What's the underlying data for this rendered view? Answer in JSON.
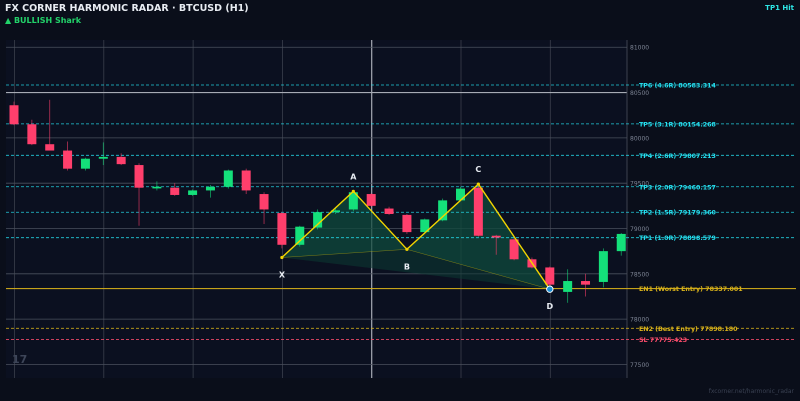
{
  "header": {
    "title": "FX CORNER HARMONIC RADAR  ·  BTCUSD (H1)",
    "pattern": "▲ BULLISH  Shark",
    "status": "TP1 Hit",
    "watermark": "fxcorner.net/harmonic_radar"
  },
  "logo": {
    "text": "17"
  },
  "colors": {
    "background": "#0a0e1a",
    "bull": "#14e07a",
    "bear": "#ff3f6c",
    "pattern_line": "#f2d400",
    "pattern_fill": "#0f4a3c",
    "tp": "#25e0f0",
    "entry": "#d9b21a",
    "sl": "#ff4d6d",
    "grid": "#3a3f4c"
  },
  "chart_data": {
    "type": "candlestick",
    "ylim": [
      77350,
      81080
    ],
    "y_ticks": [
      "81000",
      "80500",
      "80000",
      "79500",
      "79000",
      "78500",
      "78000",
      "77500"
    ],
    "candles": [
      {
        "o": 80360,
        "h": 80400,
        "l": 80140,
        "c": 80150
      },
      {
        "o": 80150,
        "h": 80200,
        "l": 79920,
        "c": 79930
      },
      {
        "o": 79930,
        "h": 80420,
        "l": 79880,
        "c": 79860
      },
      {
        "o": 79860,
        "h": 79960,
        "l": 79640,
        "c": 79660
      },
      {
        "o": 79660,
        "h": 79780,
        "l": 79640,
        "c": 79770
      },
      {
        "o": 79770,
        "h": 79950,
        "l": 79700,
        "c": 79790
      },
      {
        "o": 79790,
        "h": 79830,
        "l": 79700,
        "c": 79710
      },
      {
        "o": 79700,
        "h": 79720,
        "l": 79030,
        "c": 79450
      },
      {
        "o": 79450,
        "h": 79520,
        "l": 79420,
        "c": 79460
      },
      {
        "o": 79450,
        "h": 79500,
        "l": 79360,
        "c": 79370
      },
      {
        "o": 79370,
        "h": 79430,
        "l": 79360,
        "c": 79420
      },
      {
        "o": 79420,
        "h": 79480,
        "l": 79340,
        "c": 79460
      },
      {
        "o": 79460,
        "h": 79650,
        "l": 79440,
        "c": 79640
      },
      {
        "o": 79640,
        "h": 79660,
        "l": 79380,
        "c": 79420
      },
      {
        "o": 79380,
        "h": 79400,
        "l": 79050,
        "c": 79210
      },
      {
        "o": 79170,
        "h": 79180,
        "l": 78780,
        "c": 78820
      },
      {
        "o": 78820,
        "h": 79030,
        "l": 78800,
        "c": 79020
      },
      {
        "o": 79010,
        "h": 79210,
        "l": 78990,
        "c": 79180
      },
      {
        "o": 79180,
        "h": 79220,
        "l": 79160,
        "c": 79200
      },
      {
        "o": 79210,
        "h": 79420,
        "l": 79190,
        "c": 79400
      },
      {
        "o": 79380,
        "h": 79390,
        "l": 79240,
        "c": 79250
      },
      {
        "o": 79220,
        "h": 79240,
        "l": 79150,
        "c": 79160
      },
      {
        "o": 79150,
        "h": 79160,
        "l": 78940,
        "c": 78960
      },
      {
        "o": 78960,
        "h": 79110,
        "l": 78950,
        "c": 79100
      },
      {
        "o": 79090,
        "h": 79330,
        "l": 79080,
        "c": 79310
      },
      {
        "o": 79310,
        "h": 79460,
        "l": 79300,
        "c": 79440
      },
      {
        "o": 79450,
        "h": 79480,
        "l": 78910,
        "c": 78920
      },
      {
        "o": 78920,
        "h": 78930,
        "l": 78710,
        "c": 78900
      },
      {
        "o": 78880,
        "h": 78890,
        "l": 78650,
        "c": 78660
      },
      {
        "o": 78660,
        "h": 78680,
        "l": 78560,
        "c": 78570
      },
      {
        "o": 78570,
        "h": 78580,
        "l": 78330,
        "c": 78380
      },
      {
        "o": 78300,
        "h": 78550,
        "l": 78180,
        "c": 78420
      },
      {
        "o": 78420,
        "h": 78500,
        "l": 78250,
        "c": 78380
      },
      {
        "o": 78410,
        "h": 78780,
        "l": 78350,
        "c": 78750
      },
      {
        "o": 78750,
        "h": 78950,
        "l": 78700,
        "c": 78940
      }
    ],
    "pattern": {
      "points": [
        {
          "label": "X",
          "i": 15,
          "price": 78680
        },
        {
          "label": "A",
          "i": 19,
          "price": 79410
        },
        {
          "label": "B",
          "i": 22,
          "price": 78770
        },
        {
          "label": "C",
          "i": 26,
          "price": 79490
        },
        {
          "label": "D",
          "i": 30,
          "price": 78330
        }
      ]
    },
    "levels": [
      {
        "type": "tp",
        "label": "TP6 (4.6R)  80583.314",
        "price": 80583.314
      },
      {
        "type": "tp",
        "label": "TP5 (3.1R)  80154.268",
        "price": 80154.268
      },
      {
        "type": "tp",
        "label": "TP4 (2.6R)  79807.213",
        "price": 79807.213
      },
      {
        "type": "tp",
        "label": "TP3 (2.0R)  79460.157",
        "price": 79460.157
      },
      {
        "type": "tp",
        "label": "TP2 (1.5R)  79179.360",
        "price": 79179.36
      },
      {
        "type": "tp",
        "label": "TP1 (1.0R)  78898.579",
        "price": 78898.579
      },
      {
        "type": "entry",
        "label": "EN1 (Worst Entry)  78337.001",
        "price": 78337.001
      },
      {
        "type": "entry",
        "label": "EN2 (Best Entry)  77898.180",
        "price": 77898.18
      },
      {
        "type": "sl",
        "label": "SL  77775.423",
        "price": 77775.423
      }
    ]
  }
}
